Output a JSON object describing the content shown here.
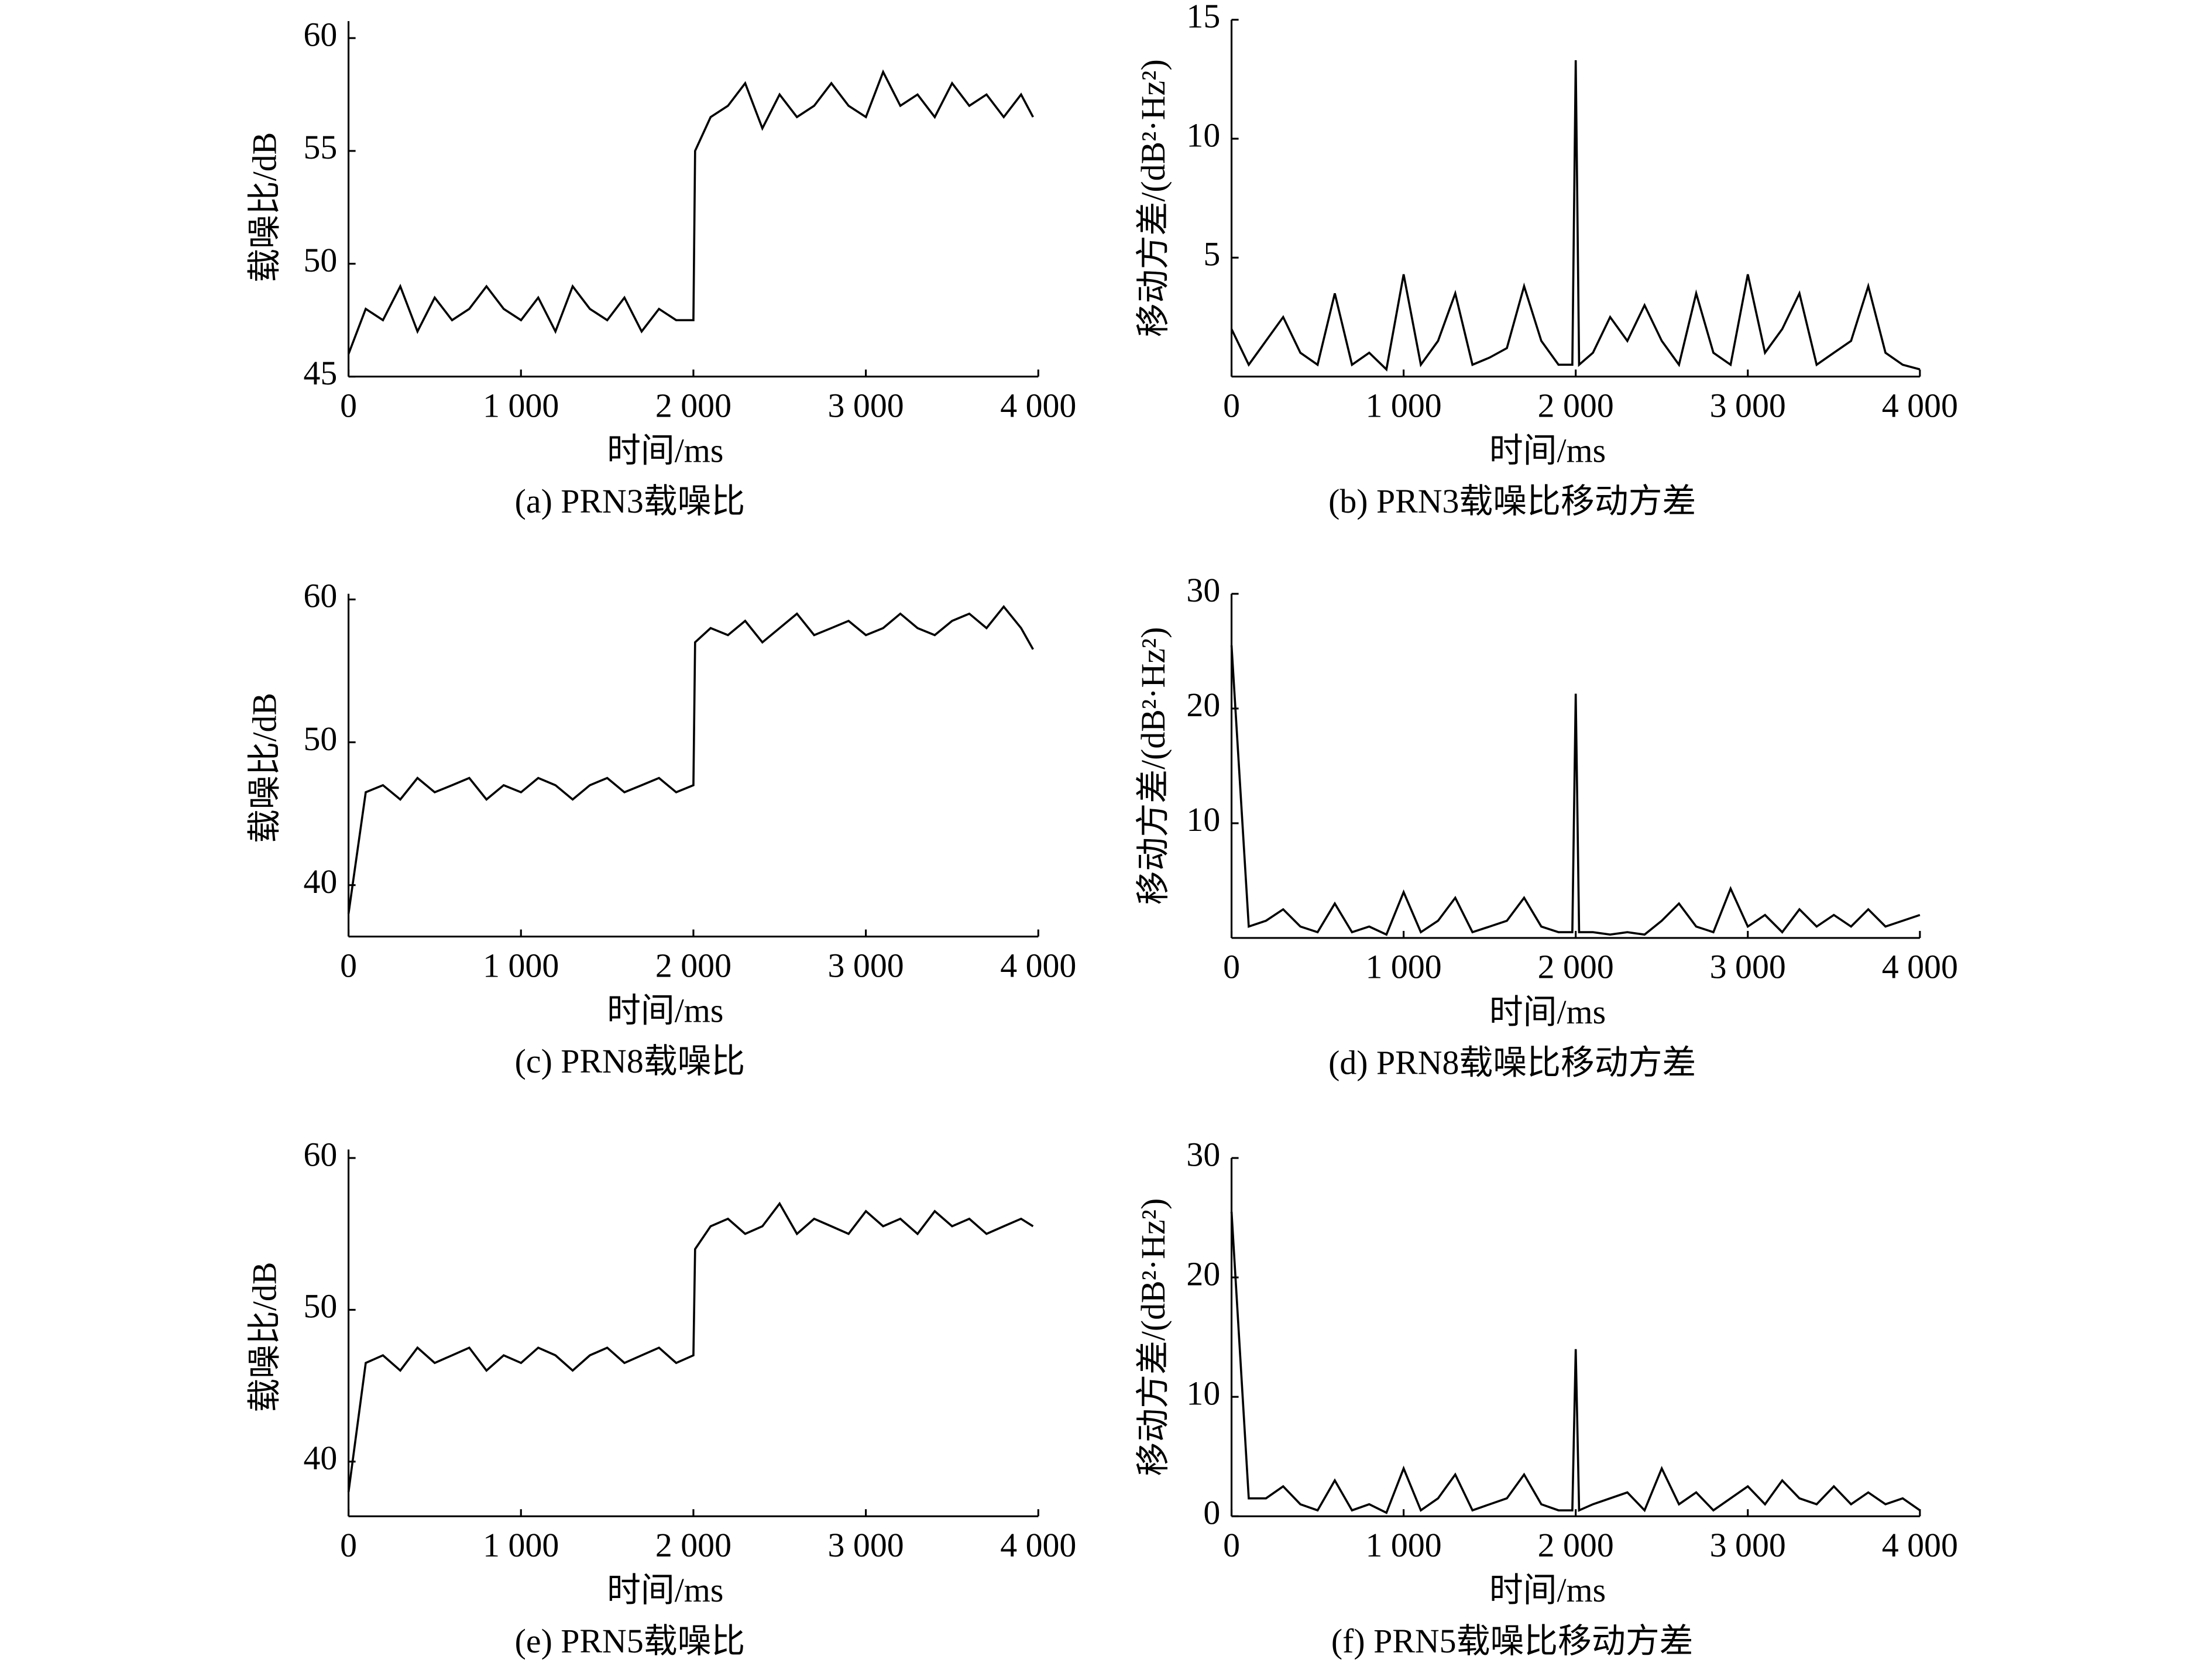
{
  "chart_data": [
    {
      "type": "line",
      "caption": "(a) PRN3载噪比",
      "xlabel": "时间/ms",
      "ylabel": "载噪比/dB",
      "x": [
        0,
        100,
        200,
        300,
        400,
        500,
        600,
        700,
        800,
        900,
        1000,
        1100,
        1200,
        1300,
        1400,
        1500,
        1600,
        1700,
        1800,
        1900,
        2000,
        2010,
        2100,
        2200,
        2300,
        2400,
        2500,
        2600,
        2700,
        2800,
        2900,
        3000,
        3100,
        3200,
        3300,
        3400,
        3500,
        3600,
        3700,
        3800,
        3900,
        3970
      ],
      "values": [
        46,
        48,
        47.5,
        49,
        47,
        48.5,
        47.5,
        48,
        49,
        48,
        47.5,
        48.5,
        47,
        49,
        48,
        47.5,
        48.5,
        47,
        48,
        47.5,
        47.5,
        55,
        56.5,
        57,
        58,
        56,
        57.5,
        56.5,
        57,
        58,
        57,
        56.5,
        58.5,
        57,
        57.5,
        56.5,
        58,
        57,
        57.5,
        56.5,
        57.5,
        56.5
      ],
      "color": "#000000",
      "xlim": [
        0,
        4000
      ],
      "xticks": [
        0,
        {
          "value": 1000,
          "label": "1 000"
        },
        {
          "value": 2000,
          "label": "2 000"
        },
        {
          "value": 3000,
          "label": "3 000"
        },
        {
          "value": 4000,
          "label": "4 000"
        }
      ],
      "ylim": [
        45,
        60
      ],
      "yticks": [
        45,
        50,
        55,
        60
      ]
    },
    {
      "type": "line",
      "caption": "(b) PRN3载噪比移动方差",
      "xlabel": "时间/ms",
      "ylabel": "移动方差/(dB²·Hz²)",
      "x": [
        0,
        100,
        200,
        300,
        400,
        500,
        600,
        700,
        800,
        900,
        1000,
        1100,
        1200,
        1300,
        1400,
        1500,
        1600,
        1700,
        1800,
        1900,
        1980,
        2000,
        2020,
        2100,
        2200,
        2300,
        2400,
        2500,
        2600,
        2700,
        2800,
        2900,
        3000,
        3100,
        3200,
        3300,
        3400,
        3500,
        3600,
        3700,
        3800,
        3900,
        4000
      ],
      "values": [
        2,
        0.5,
        1.5,
        2.5,
        1,
        0.5,
        3.5,
        0.5,
        1,
        0.3,
        4.3,
        0.5,
        1.5,
        3.5,
        0.5,
        0.8,
        1.2,
        3.8,
        1.5,
        0.5,
        0.5,
        13.3,
        0.5,
        1,
        2.5,
        1.5,
        3,
        1.5,
        0.5,
        3.5,
        1,
        0.5,
        4.3,
        1,
        2,
        3.5,
        0.5,
        1,
        1.5,
        3.8,
        1,
        0.5,
        0.3
      ],
      "color": "#000000",
      "xlim": [
        0,
        4000
      ],
      "xticks": [
        0,
        {
          "value": 1000,
          "label": "1 000"
        },
        {
          "value": 2000,
          "label": "2 000"
        },
        {
          "value": 3000,
          "label": "3 000"
        },
        {
          "value": 4000,
          "label": "4 000"
        }
      ],
      "ylim": [
        0,
        15
      ],
      "yticks": [
        5,
        10,
        15
      ]
    },
    {
      "type": "line",
      "caption": "(c) PRN8载噪比",
      "xlabel": "时间/ms",
      "ylabel": "载噪比/dB",
      "x": [
        0,
        100,
        200,
        300,
        400,
        500,
        600,
        700,
        800,
        900,
        1000,
        1100,
        1200,
        1300,
        1400,
        1500,
        1600,
        1700,
        1800,
        1900,
        2000,
        2010,
        2100,
        2200,
        2300,
        2400,
        2500,
        2600,
        2700,
        2800,
        2900,
        3000,
        3100,
        3200,
        3300,
        3400,
        3500,
        3600,
        3700,
        3800,
        3900,
        3970
      ],
      "values": [
        38,
        46.5,
        47,
        46,
        47.5,
        46.5,
        47,
        47.5,
        46,
        47,
        46.5,
        47.5,
        47,
        46,
        47,
        47.5,
        46.5,
        47,
        47.5,
        46.5,
        47,
        57,
        58,
        57.5,
        58.5,
        57,
        58,
        59,
        57.5,
        58,
        58.5,
        57.5,
        58,
        59,
        58,
        57.5,
        58.5,
        59,
        58,
        59.5,
        58,
        56.5
      ],
      "color": "#000000",
      "xlim": [
        0,
        4000
      ],
      "xticks": [
        0,
        {
          "value": 1000,
          "label": "1 000"
        },
        {
          "value": 2000,
          "label": "2 000"
        },
        {
          "value": 3000,
          "label": "3 000"
        },
        {
          "value": 4000,
          "label": "4 000"
        }
      ],
      "ylim": [
        36.4,
        60
      ],
      "yticks": [
        40,
        50,
        60
      ]
    },
    {
      "type": "line",
      "caption": "(d) PRN8载噪比移动方差",
      "xlabel": "时间/ms",
      "ylabel": "移动方差/(dB²·Hz²)",
      "x": [
        0,
        100,
        200,
        300,
        400,
        500,
        600,
        700,
        800,
        900,
        1000,
        1100,
        1200,
        1300,
        1400,
        1500,
        1600,
        1700,
        1800,
        1900,
        1980,
        2000,
        2020,
        2100,
        2200,
        2300,
        2400,
        2500,
        2600,
        2700,
        2800,
        2900,
        3000,
        3100,
        3200,
        3300,
        3400,
        3500,
        3600,
        3700,
        3800,
        3900,
        4000
      ],
      "values": [
        25.5,
        1,
        1.5,
        2.5,
        1,
        0.5,
        3,
        0.5,
        1,
        0.3,
        4,
        0.5,
        1.5,
        3.5,
        0.5,
        1,
        1.5,
        3.5,
        1,
        0.5,
        0.5,
        21.3,
        0.5,
        0.5,
        0.3,
        0.5,
        0.3,
        1.5,
        3,
        1,
        0.5,
        4.3,
        1,
        2,
        0.5,
        2.5,
        1,
        2,
        1,
        2.5,
        1,
        1.5,
        2
      ],
      "color": "#000000",
      "xlim": [
        0,
        4000
      ],
      "xticks": [
        0,
        {
          "value": 1000,
          "label": "1 000"
        },
        {
          "value": 2000,
          "label": "2 000"
        },
        {
          "value": 3000,
          "label": "3 000"
        },
        {
          "value": 4000,
          "label": "4 000"
        }
      ],
      "ylim": [
        0,
        30
      ],
      "yticks": [
        10,
        20,
        30
      ]
    },
    {
      "type": "line",
      "caption": "(e) PRN5载噪比",
      "xlabel": "时间/ms",
      "ylabel": "载噪比/dB",
      "x": [
        0,
        100,
        200,
        300,
        400,
        500,
        600,
        700,
        800,
        900,
        1000,
        1100,
        1200,
        1300,
        1400,
        1500,
        1600,
        1700,
        1800,
        1900,
        2000,
        2010,
        2100,
        2200,
        2300,
        2400,
        2500,
        2600,
        2700,
        2800,
        2900,
        3000,
        3100,
        3200,
        3300,
        3400,
        3500,
        3600,
        3700,
        3800,
        3900,
        3970
      ],
      "values": [
        38,
        46.5,
        47,
        46,
        47.5,
        46.5,
        47,
        47.5,
        46,
        47,
        46.5,
        47.5,
        47,
        46,
        47,
        47.5,
        46.5,
        47,
        47.5,
        46.5,
        47,
        54,
        55.5,
        56,
        55,
        55.5,
        57,
        55,
        56,
        55.5,
        55,
        56.5,
        55.5,
        56,
        55,
        56.5,
        55.5,
        56,
        55,
        55.5,
        56,
        55.5
      ],
      "color": "#000000",
      "xlim": [
        0,
        4000
      ],
      "xticks": [
        0,
        {
          "value": 1000,
          "label": "1 000"
        },
        {
          "value": 2000,
          "label": "2 000"
        },
        {
          "value": 3000,
          "label": "3 000"
        },
        {
          "value": 4000,
          "label": "4 000"
        }
      ],
      "ylim": [
        36.4,
        60
      ],
      "yticks": [
        40,
        50,
        60
      ]
    },
    {
      "type": "line",
      "caption": "(f) PRN5载噪比移动方差",
      "xlabel": "时间/ms",
      "ylabel": "移动方差/(dB²·Hz²)",
      "x": [
        0,
        100,
        200,
        300,
        400,
        500,
        600,
        700,
        800,
        900,
        1000,
        1100,
        1200,
        1300,
        1400,
        1500,
        1600,
        1700,
        1800,
        1900,
        1980,
        2000,
        2020,
        2100,
        2200,
        2300,
        2400,
        2500,
        2600,
        2700,
        2800,
        2900,
        3000,
        3100,
        3200,
        3300,
        3400,
        3500,
        3600,
        3700,
        3800,
        3900,
        4000
      ],
      "values": [
        25.5,
        1.5,
        1.5,
        2.5,
        1,
        0.5,
        3,
        0.5,
        1,
        0.3,
        4,
        0.5,
        1.5,
        3.5,
        0.5,
        1,
        1.5,
        3.5,
        1,
        0.5,
        0.5,
        14,
        0.5,
        1,
        1.5,
        2,
        0.5,
        4,
        1,
        2,
        0.5,
        1.5,
        2.5,
        1,
        3,
        1.5,
        1,
        2.5,
        1,
        2,
        1,
        1.5,
        0.5
      ],
      "color": "#000000",
      "xlim": [
        0,
        4000
      ],
      "xticks": [
        0,
        {
          "value": 1000,
          "label": "1 000"
        },
        {
          "value": 2000,
          "label": "2 000"
        },
        {
          "value": 3000,
          "label": "3 000"
        },
        {
          "value": 4000,
          "label": "4 000"
        }
      ],
      "ylim": [
        0,
        30
      ],
      "yticks": [
        0,
        10,
        20,
        30
      ]
    }
  ]
}
